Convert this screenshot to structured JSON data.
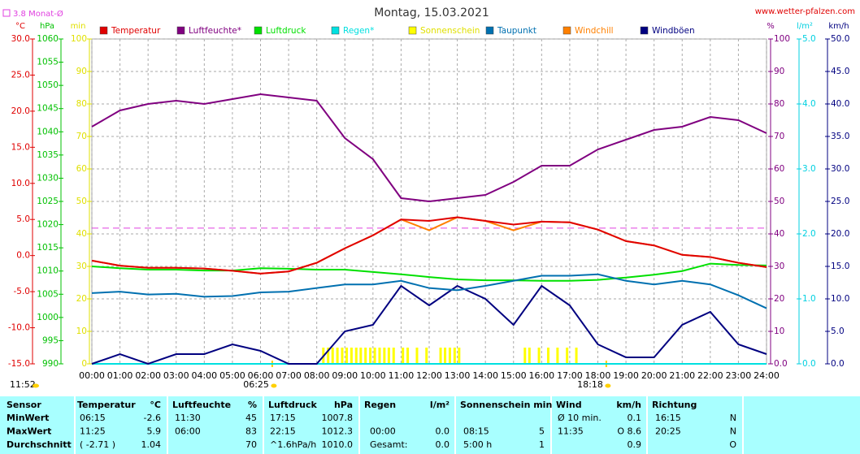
{
  "chart_data": {
    "type": "line",
    "title": "Montag, 15.03.2021",
    "source": "www.wetter-pfalzen.com",
    "reference_line": {
      "value": 3.8,
      "label": "3.8 Monat-Ø",
      "axis": "temp",
      "color": "#e040e0"
    },
    "axes": {
      "temp": {
        "label": "°C",
        "color": "#e00000",
        "lim": [
          -15,
          30
        ],
        "ticks": [
          {
            "value": -15,
            "label": "-15.0"
          },
          {
            "value": -10,
            "label": "-10.0"
          },
          {
            "value": -5,
            "label": "-5.0"
          },
          {
            "value": 0,
            "label": "0.0"
          },
          {
            "value": 5,
            "label": "5.0"
          },
          {
            "value": 10,
            "label": "10.0"
          },
          {
            "value": 15,
            "label": "15.0"
          },
          {
            "value": 20,
            "label": "20.0"
          },
          {
            "value": 25,
            "label": "25.0"
          },
          {
            "value": 30,
            "label": "30.0"
          }
        ]
      },
      "hpa": {
        "label": "hPa",
        "color": "#00c000",
        "lim": [
          990,
          1060
        ],
        "ticks": [
          990,
          995,
          1000,
          1005,
          1010,
          1015,
          1020,
          1025,
          1030,
          1035,
          1040,
          1045,
          1050,
          1055,
          1060
        ]
      },
      "min": {
        "label": "min",
        "color": "#e0e000",
        "lim": [
          0,
          100
        ],
        "ticks": [
          0,
          10,
          20,
          30,
          40,
          50,
          60,
          70,
          80,
          90,
          100
        ]
      },
      "pct": {
        "label": "%",
        "color": "#800080",
        "lim": [
          0,
          100
        ],
        "ticks": [
          {
            "value": 0,
            "label": "0.0"
          },
          10,
          20,
          30,
          40,
          50,
          60,
          70,
          80,
          90,
          100
        ]
      },
      "rain": {
        "label": "l/m²",
        "color": "#00d0e0",
        "lim": [
          0,
          5
        ],
        "ticks": [
          {
            "value": 0,
            "label": "0.0"
          },
          {
            "value": 1,
            "label": "1.0"
          },
          {
            "value": 2,
            "label": "2.0"
          },
          {
            "value": 3,
            "label": "3.0"
          },
          {
            "value": 4,
            "label": "4.0"
          },
          {
            "value": 5,
            "label": "5.0"
          }
        ]
      },
      "kmh": {
        "label": "km/h",
        "color": "#000080",
        "lim": [
          0,
          50
        ],
        "ticks": [
          {
            "value": 0,
            "label": "0.0"
          },
          {
            "value": 5,
            "label": "5.0"
          },
          {
            "value": 10,
            "label": "10.0"
          },
          {
            "value": 15,
            "label": "15.0"
          },
          {
            "value": 20,
            "label": "20.0"
          },
          {
            "value": 25,
            "label": "25.0"
          },
          {
            "value": 30,
            "label": "30.0"
          },
          {
            "value": 35,
            "label": "35.0"
          },
          {
            "value": 40,
            "label": "40.0"
          },
          {
            "value": 45,
            "label": "45.0"
          },
          {
            "value": 50,
            "label": "50.0"
          }
        ]
      }
    },
    "xlim": [
      0,
      24
    ],
    "xticks": [
      {
        "value": 0,
        "label": "00:00"
      },
      {
        "value": 1,
        "label": "01:00"
      },
      {
        "value": 2,
        "label": "02:00"
      },
      {
        "value": 3,
        "label": "03:00"
      },
      {
        "value": 4,
        "label": "04:00"
      },
      {
        "value": 5,
        "label": "05:00"
      },
      {
        "value": 6,
        "label": "06:00"
      },
      {
        "value": 7,
        "label": "07:00"
      },
      {
        "value": 8,
        "label": "08:00"
      },
      {
        "value": 9,
        "label": "09:00"
      },
      {
        "value": 10,
        "label": "10:00"
      },
      {
        "value": 11,
        "label": "11:00"
      },
      {
        "value": 12,
        "label": "12:00"
      },
      {
        "value": 13,
        "label": "13:00"
      },
      {
        "value": 14,
        "label": "14:00"
      },
      {
        "value": 15,
        "label": "15:00"
      },
      {
        "value": 16,
        "label": "16:00"
      },
      {
        "value": 17,
        "label": "17:00"
      },
      {
        "value": 18,
        "label": "18:00"
      },
      {
        "value": 19,
        "label": "19:00"
      },
      {
        "value": 20,
        "label": "20:00"
      },
      {
        "value": 21,
        "label": "21:00"
      },
      {
        "value": 22,
        "label": "22:00"
      },
      {
        "value": 23,
        "label": "23:00"
      },
      {
        "value": 24,
        "label": "24:00"
      }
    ],
    "grid": true,
    "sun_times": [
      {
        "value": 6.4167,
        "label": "06:25"
      },
      {
        "value": 18.3,
        "label": "18:18"
      }
    ],
    "solar_noon": "11:52",
    "x": [
      0,
      1,
      2,
      3,
      4,
      5,
      6,
      7,
      8,
      9,
      10,
      11,
      12,
      13,
      14,
      15,
      16,
      17,
      18,
      19,
      20,
      21,
      22,
      23,
      24
    ],
    "series": [
      {
        "name": "Temperatur",
        "color": "#e00000",
        "axis": "temp",
        "values": [
          -0.7,
          -1.4,
          -1.7,
          -1.7,
          -1.8,
          -2.1,
          -2.5,
          -2.2,
          -1.0,
          1.0,
          2.8,
          5.0,
          4.8,
          5.3,
          4.8,
          4.3,
          4.7,
          4.6,
          3.6,
          2.0,
          1.4,
          0.1,
          -0.2,
          -1.0,
          -1.6
        ]
      },
      {
        "name": "Luftfeuchte*",
        "color": "#800080",
        "axis": "pct",
        "values": [
          73,
          78,
          80,
          81,
          80,
          81.5,
          83,
          82,
          81,
          69.5,
          63,
          51,
          50,
          51,
          52,
          56,
          61,
          61,
          66,
          69,
          72,
          73,
          76,
          75,
          71
        ]
      },
      {
        "name": "Luftdruck",
        "color": "#00e000",
        "axis": "hpa",
        "values": [
          1011.0,
          1010.6,
          1010.3,
          1010.3,
          1010.1,
          1010.1,
          1010.6,
          1010.5,
          1010.3,
          1010.3,
          1009.8,
          1009.3,
          1008.7,
          1008.2,
          1008.0,
          1008.0,
          1007.9,
          1007.9,
          1008.1,
          1008.6,
          1009.2,
          1010.0,
          1011.6,
          1011.3,
          1011.2
        ]
      },
      {
        "name": "Regen*",
        "color": "#00e0e0",
        "axis": "rain",
        "values": [
          0,
          0,
          0,
          0,
          0,
          0,
          0,
          0,
          0,
          0,
          0,
          0,
          0,
          0,
          0,
          0,
          0,
          0,
          0,
          0,
          0,
          0,
          0,
          0,
          0
        ]
      },
      {
        "name": "Sonnenschein",
        "color": "#ffff00",
        "axis": "min",
        "kind": "bar",
        "x": [
          8.25,
          8.42,
          8.58,
          8.75,
          8.92,
          9.08,
          9.25,
          9.42,
          9.58,
          9.75,
          9.92,
          10.08,
          10.25,
          10.42,
          10.58,
          10.75,
          11.08,
          11.25,
          11.58,
          11.92,
          12.42,
          12.58,
          12.75,
          12.92,
          13.08,
          15.42,
          15.58,
          15.92,
          16.25,
          16.58,
          16.92,
          17.25
        ],
        "values": [
          5,
          5,
          5,
          5,
          5,
          5,
          5,
          5,
          5,
          5,
          5,
          5,
          5,
          5,
          5,
          5,
          5,
          5,
          5,
          5,
          5,
          5,
          5,
          5,
          5,
          5,
          5,
          5,
          5,
          5,
          5,
          5
        ]
      },
      {
        "name": "Taupunkt",
        "color": "#0070b0",
        "axis": "temp",
        "values": [
          -5.2,
          -5.0,
          -5.4,
          -5.3,
          -5.7,
          -5.6,
          -5.1,
          -5.0,
          -4.5,
          -4.0,
          -4.0,
          -3.5,
          -4.5,
          -4.8,
          -4.2,
          -3.5,
          -2.8,
          -2.8,
          -2.6,
          -3.5,
          -4.0,
          -3.5,
          -4.0,
          -5.5,
          -7.3
        ]
      },
      {
        "name": "Windchill",
        "color": "#ff8000",
        "axis": "temp",
        "values": [
          -0.7,
          -1.4,
          -1.7,
          -1.7,
          -1.8,
          -2.1,
          -2.5,
          -2.2,
          -1.0,
          1.0,
          2.8,
          5.0,
          3.5,
          5.3,
          4.8,
          3.5,
          4.7,
          4.6,
          3.6,
          2.0,
          1.4,
          0.1,
          -0.2,
          -1.0,
          -1.6
        ]
      },
      {
        "name": "Windböen",
        "color": "#000080",
        "axis": "kmh",
        "values": [
          0,
          1.5,
          0,
          1.5,
          1.5,
          3,
          2,
          0,
          0,
          5,
          6,
          12,
          9,
          12,
          10,
          6,
          12,
          9,
          3,
          1,
          1,
          6,
          8,
          3,
          1.5
        ]
      }
    ]
  },
  "table": {
    "header": {
      "label": "Sensor",
      "temp": "Temperatur",
      "temp_unit": "°C",
      "hum": "Luftfeuchte",
      "hum_unit": "%",
      "press": "Luftdruck",
      "press_unit": "hPa",
      "rain": "Regen",
      "rain_unit": "l/m²",
      "sun": "Sonnenschein min",
      "wind": "Wind",
      "wind_unit": "km/h",
      "dir": "Richtung"
    },
    "rows": [
      {
        "label": "MinWert",
        "temp_t": "06:15",
        "temp_v": "-2.6",
        "hum_t": "11:30",
        "hum_v": "45",
        "press_t": "17:15",
        "press_v": "1007.8",
        "wind_t": "Ø 10 min.",
        "wind_v": "0.1",
        "dir_t": "16:15",
        "dir_v": "N"
      },
      {
        "label": "MaxWert",
        "temp_t": "11:25",
        "temp_v": "5.9",
        "hum_t": "06:00",
        "hum_v": "83",
        "press_t": "22:15",
        "press_v": "1012.3",
        "rain_t": "00:00",
        "rain_v": "0.0",
        "sun_t": "08:15",
        "sun_v": "5",
        "wind_t": "11:35",
        "wind_v": "O 8.6",
        "dir_t": "20:25",
        "dir_v": "N"
      },
      {
        "label": "Durchschnitt",
        "temp_t": "( -2.71 )",
        "temp_v": "1.04",
        "hum_v": "70",
        "press_t": "^1.6hPa/h",
        "press_v": "1010.0",
        "rain_t": "Gesamt:",
        "rain_v": "0.0",
        "sun_t": "5:00 h",
        "sun_v": "1",
        "wind_v": "0.9",
        "dir_v": "O"
      }
    ]
  }
}
